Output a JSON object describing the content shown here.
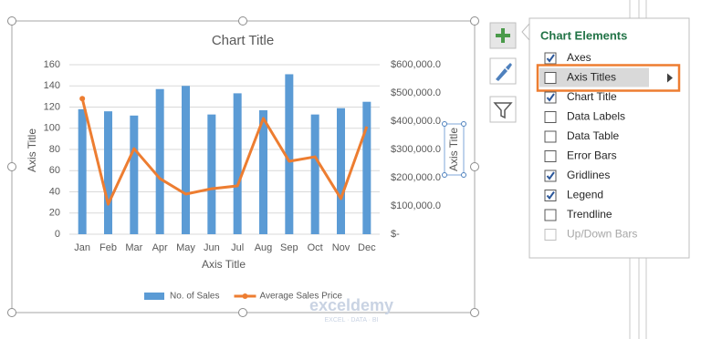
{
  "chart_data": {
    "type": "bar",
    "title": "Chart Title",
    "categories": [
      "Jan",
      "Feb",
      "Mar",
      "Apr",
      "May",
      "Jun",
      "Jul",
      "Aug",
      "Sep",
      "Oct",
      "Nov",
      "Dec"
    ],
    "series": [
      {
        "name": "No. of Sales",
        "type": "bar",
        "color": "#5b9bd5",
        "values": [
          118,
          116,
          112,
          137,
          140,
          113,
          133,
          117,
          151,
          113,
          119,
          125
        ]
      },
      {
        "name": "Average Sales Price",
        "type": "line",
        "axis": "y2",
        "color": "#ed7d31",
        "values": [
          480000,
          106000,
          303000,
          197000,
          142000,
          161000,
          171000,
          410000,
          258000,
          274000,
          126000,
          381000
        ]
      }
    ],
    "x_label": "Axis Title",
    "y_label": "Axis Title",
    "y2_label": "Axis Title",
    "ylim": [
      0,
      160
    ],
    "yticks": [
      0,
      20,
      40,
      60,
      80,
      100,
      120,
      140,
      160
    ],
    "y2lim": [
      0,
      600000
    ],
    "y2ticks": [
      {
        "value": 0,
        "label": "$-"
      },
      {
        "value": 100000,
        "label": "$100,000.0"
      },
      {
        "value": 200000,
        "label": "$200,000.0"
      },
      {
        "value": 300000,
        "label": "$300,000.0"
      },
      {
        "value": 400000,
        "label": "$400,000.0"
      },
      {
        "value": 500000,
        "label": "$500,000.0"
      },
      {
        "value": 600000,
        "label": "$600,000.0"
      }
    ],
    "grid": true,
    "legend": "bottom"
  },
  "panel": {
    "title": "Chart Elements",
    "items": [
      {
        "label": "Axes",
        "checked": true,
        "enabled": true,
        "highlighted": false
      },
      {
        "label": "Axis Titles",
        "checked": false,
        "enabled": true,
        "highlighted": true
      },
      {
        "label": "Chart Title",
        "checked": true,
        "enabled": true,
        "highlighted": false
      },
      {
        "label": "Data Labels",
        "checked": false,
        "enabled": true,
        "highlighted": false
      },
      {
        "label": "Data Table",
        "checked": false,
        "enabled": true,
        "highlighted": false
      },
      {
        "label": "Error Bars",
        "checked": false,
        "enabled": true,
        "highlighted": false
      },
      {
        "label": "Gridlines",
        "checked": true,
        "enabled": true,
        "highlighted": false
      },
      {
        "label": "Legend",
        "checked": true,
        "enabled": true,
        "highlighted": false
      },
      {
        "label": "Trendline",
        "checked": false,
        "enabled": true,
        "highlighted": false
      },
      {
        "label": "Up/Down Bars",
        "checked": false,
        "enabled": false,
        "highlighted": false
      }
    ]
  },
  "watermark": {
    "name": "exceldemy",
    "tagline": "EXCEL · DATA · BI"
  }
}
